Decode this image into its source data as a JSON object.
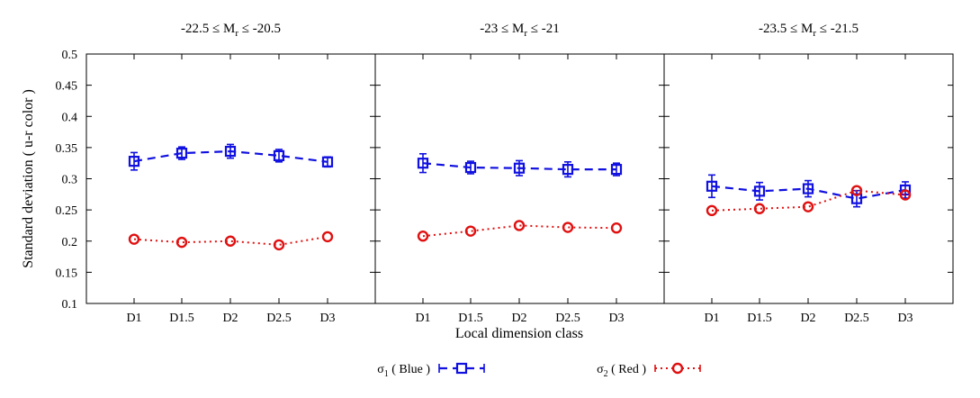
{
  "chart_data": {
    "type": "line",
    "ylabel": "Standard deviation ( u-r color )",
    "xlabel": "Local dimension class",
    "categories": [
      "D1",
      "D1.5",
      "D2",
      "D2.5",
      "D3"
    ],
    "ylim": [
      0.1,
      0.5
    ],
    "yticks": [
      "0.1",
      "0.15",
      "0.2",
      "0.25",
      "0.3",
      "0.35",
      "0.4",
      "0.45",
      "0.5"
    ],
    "grid": false,
    "legend_position": "bottom",
    "colors": {
      "blue": "#1010e0",
      "red": "#e01010"
    },
    "legend": [
      {
        "symbol": "σ",
        "sub": "1",
        "text": " ( Blue )"
      },
      {
        "symbol": "σ",
        "sub": "2",
        "text": " ( Red )"
      }
    ],
    "panels": [
      {
        "title": {
          "pre": "-22.5 ≤ M",
          "sub": "r",
          "post": " ≤ -20.5"
        },
        "series": [
          {
            "values": [
              0.328,
              0.341,
              0.344,
              0.337,
              0.327
            ],
            "errors": [
              0.014,
              0.01,
              0.011,
              0.01,
              0.008
            ]
          },
          {
            "values": [
              0.203,
              0.198,
              0.2,
              0.194,
              0.207
            ],
            "errors": [
              0.003,
              0.003,
              0.003,
              0.003,
              0.003
            ]
          }
        ]
      },
      {
        "title": {
          "pre": "-23 ≤ M",
          "sub": "r",
          "post": " ≤ -21"
        },
        "series": [
          {
            "values": [
              0.325,
              0.318,
              0.317,
              0.315,
              0.315
            ],
            "errors": [
              0.015,
              0.01,
              0.012,
              0.012,
              0.01
            ]
          },
          {
            "values": [
              0.208,
              0.216,
              0.225,
              0.222,
              0.221
            ],
            "errors": [
              0.003,
              0.003,
              0.003,
              0.003,
              0.003
            ]
          }
        ]
      },
      {
        "title": {
          "pre": "-23.5 ≤ M",
          "sub": "r",
          "post": " ≤ -21.5"
        },
        "series": [
          {
            "values": [
              0.288,
              0.28,
              0.284,
              0.268,
              0.282
            ],
            "errors": [
              0.018,
              0.014,
              0.013,
              0.013,
              0.013
            ]
          },
          {
            "values": [
              0.249,
              0.252,
              0.255,
              0.281,
              0.274
            ],
            "errors": [
              0.003,
              0.003,
              0.003,
              0.003,
              0.003
            ]
          }
        ]
      }
    ]
  }
}
